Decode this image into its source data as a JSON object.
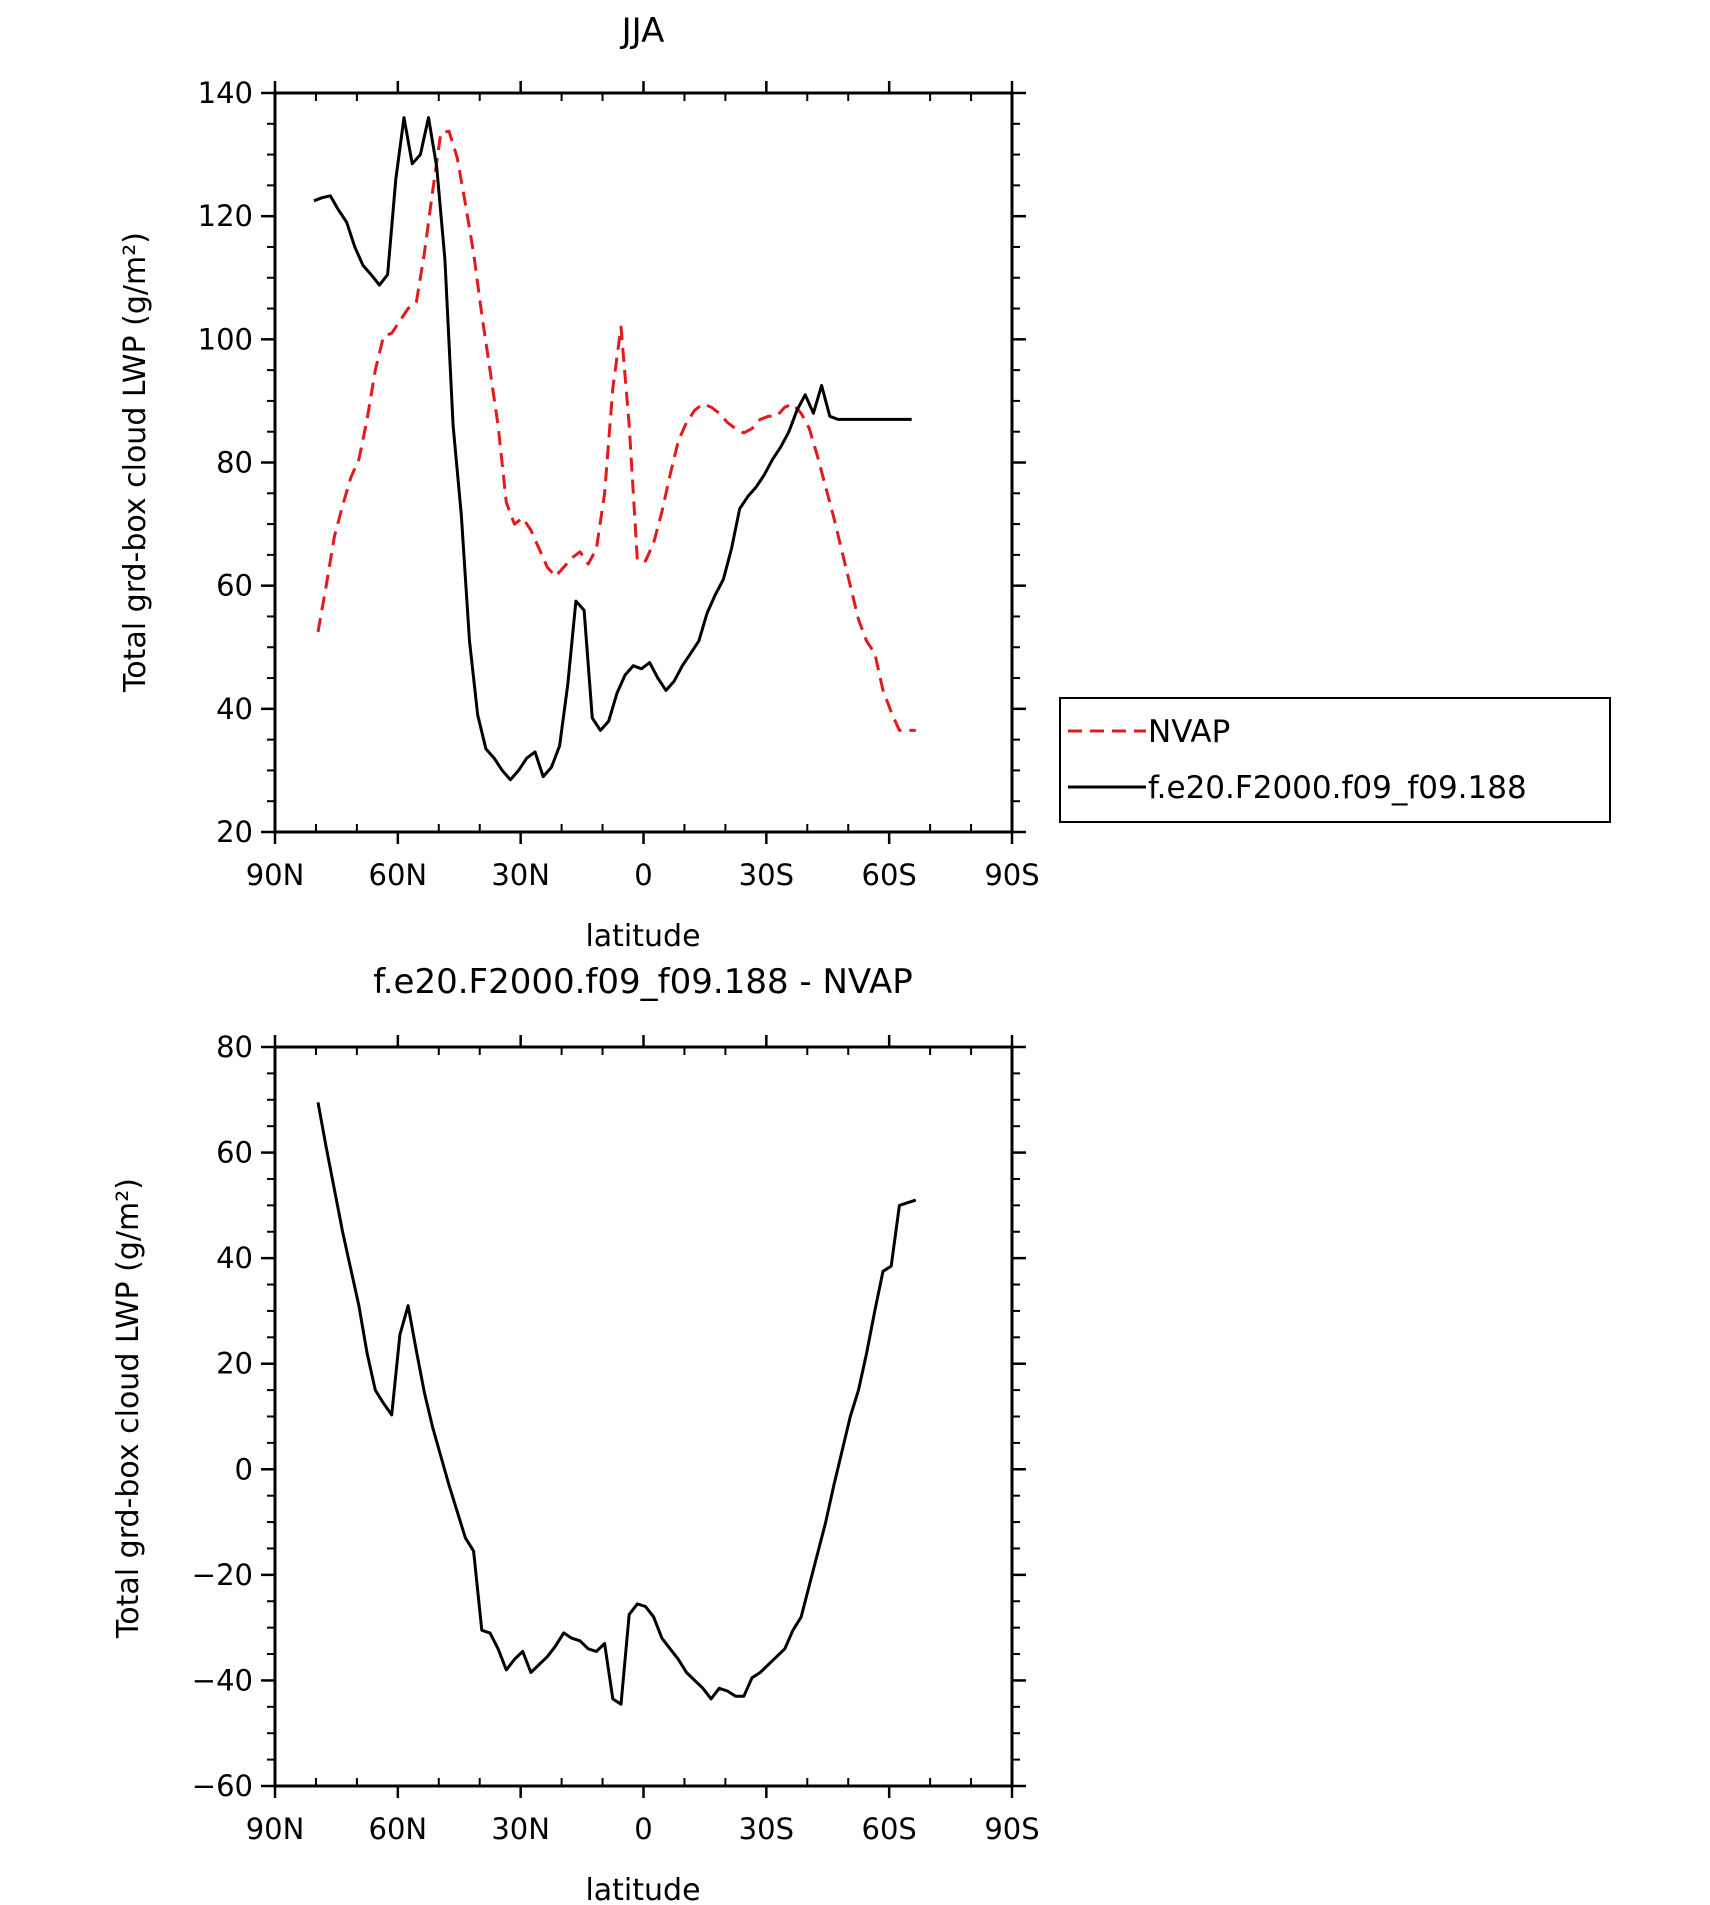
{
  "chart_data": [
    {
      "type": "line",
      "title": "JJA",
      "xlabel": "latitude",
      "ylabel": "Total grd-box cloud LWP (g/m²)",
      "ylim": [
        20,
        140
      ],
      "xlim": [
        90,
        -90
      ],
      "x_ticks": [
        {
          "value": 90,
          "label": "90N"
        },
        {
          "value": 60,
          "label": "60N"
        },
        {
          "value": 30,
          "label": "30N"
        },
        {
          "value": 0,
          "label": "0"
        },
        {
          "value": -30,
          "label": "30S"
        },
        {
          "value": -60,
          "label": "60S"
        },
        {
          "value": -90,
          "label": "90S"
        }
      ],
      "y_ticks": [
        20,
        40,
        60,
        80,
        100,
        120,
        140
      ],
      "legend": "right",
      "series": [
        {
          "name": "NVAP",
          "color": "#e31a1c",
          "dash": "dashed",
          "x": [
            79.5,
            77.5,
            75.5,
            73.5,
            71.5,
            69.5,
            67.5,
            65.5,
            63.5,
            61.5,
            59.5,
            57.5,
            55.5,
            53.5,
            51.5,
            49.5,
            47.5,
            45.5,
            43.5,
            41.5,
            39.5,
            37.5,
            35.5,
            33.5,
            31.5,
            29.5,
            27.5,
            25.5,
            23.5,
            21.5,
            19.5,
            17.5,
            15.5,
            13.5,
            11.5,
            9.5,
            7.5,
            5.5,
            3.5,
            1.5,
            -0.5,
            -2.5,
            -4.5,
            -6.5,
            -8.5,
            -10.5,
            -12.5,
            -14.5,
            -16.5,
            -18.5,
            -20.5,
            -22.5,
            -24.5,
            -26.5,
            -28.5,
            -30.5,
            -32.5,
            -34.5,
            -36.5,
            -38.5,
            -40.5,
            -42.5,
            -44.5,
            -46.5,
            -48.5,
            -50.5,
            -52.5,
            -54.5,
            -56.5,
            -58.5,
            -60.5,
            -62.5,
            -64.5,
            -66.5
          ],
          "values": [
            52.5,
            60,
            68,
            73,
            77.5,
            80.5,
            87,
            95,
            100.5,
            101,
            103,
            105,
            106,
            114,
            124,
            133.5,
            133.8,
            129.5,
            122,
            114,
            104,
            95,
            86,
            73.5,
            70,
            71,
            69,
            66,
            63,
            61.5,
            63,
            64.5,
            65.5,
            63.5,
            66,
            75,
            92,
            102,
            86,
            64,
            64,
            67,
            72,
            78,
            83.5,
            86.5,
            88.5,
            89.5,
            89,
            88,
            86.5,
            85.5,
            84.8,
            85.5,
            87,
            87.5,
            87.5,
            89,
            89.5,
            88,
            85.5,
            81,
            76,
            71,
            65.5,
            60,
            54.5,
            51,
            49,
            43,
            39.5,
            36.5,
            36.5,
            36.5
          ]
        },
        {
          "name": "f.e20.F2000.f09_f09.188",
          "color": "#000000",
          "dash": "solid",
          "x": [
            80.5,
            78.5,
            76.5,
            74.5,
            72.5,
            70.5,
            68.5,
            66.5,
            64.5,
            62.5,
            60.5,
            58.5,
            56.5,
            54.5,
            52.5,
            50.5,
            48.5,
            46.5,
            44.5,
            42.5,
            40.5,
            38.5,
            36.5,
            34.5,
            32.5,
            30.5,
            28.5,
            26.5,
            24.5,
            22.5,
            20.5,
            18.5,
            16.5,
            14.5,
            12.5,
            10.5,
            8.5,
            6.5,
            4.5,
            2.5,
            0.5,
            -1.5,
            -3.5,
            -5.5,
            -7.5,
            -9.5,
            -11.5,
            -13.5,
            -15.5,
            -17.5,
            -19.5,
            -21.5,
            -23.5,
            -25.5,
            -27.5,
            -29.5,
            -31.5,
            -33.5,
            -35.5,
            -37.5,
            -39.5,
            -41.5,
            -43.5,
            -45.5,
            -47.5,
            -49.5,
            -51.5,
            -53.5,
            -55.5,
            -57.5,
            -59.5,
            -61.5,
            -63.5,
            -65.5
          ],
          "values": [
            122.5,
            123,
            123.3,
            121,
            119,
            115,
            112,
            110.5,
            108.8,
            110.5,
            126,
            136,
            128.5,
            130,
            136,
            128,
            113,
            86,
            71.5,
            51,
            39,
            33.5,
            32,
            30,
            28.5,
            30,
            32,
            33,
            29,
            30.5,
            34,
            44,
            57.5,
            56,
            38.5,
            36.5,
            38,
            42.5,
            45.5,
            47,
            46.5,
            47.5,
            45,
            43,
            44.5,
            47,
            49,
            51,
            55.5,
            58.5,
            61,
            66,
            72.5,
            74.5,
            76,
            78,
            80.5,
            82.5,
            85,
            88.5,
            91,
            88,
            92.5,
            87.5,
            87,
            87,
            87,
            87,
            87,
            87,
            87,
            87,
            87,
            87
          ]
        }
      ]
    },
    {
      "type": "line",
      "title": "f.e20.F2000.f09_f09.188 - NVAP",
      "xlabel": "latitude",
      "ylabel": "Total grd-box cloud LWP (g/m²)",
      "ylim": [
        -60,
        80
      ],
      "xlim": [
        90,
        -90
      ],
      "x_ticks": [
        {
          "value": 90,
          "label": "90N"
        },
        {
          "value": 60,
          "label": "60N"
        },
        {
          "value": 30,
          "label": "30N"
        },
        {
          "value": 0,
          "label": "0"
        },
        {
          "value": -30,
          "label": "30S"
        },
        {
          "value": -60,
          "label": "60S"
        },
        {
          "value": -90,
          "label": "90S"
        }
      ],
      "y_ticks": [
        -60,
        -40,
        -20,
        0,
        20,
        40,
        60,
        80
      ],
      "series": [
        {
          "color": "#000000",
          "dash": "solid",
          "x": [
            79.5,
            77.5,
            75.5,
            73.5,
            71.5,
            69.5,
            67.5,
            65.5,
            63.5,
            61.5,
            59.5,
            57.5,
            55.5,
            53.5,
            51.5,
            49.5,
            47.5,
            45.5,
            43.5,
            41.5,
            39.5,
            37.5,
            35.5,
            33.5,
            31.5,
            29.5,
            27.5,
            25.5,
            23.5,
            21.5,
            19.5,
            17.5,
            15.5,
            13.5,
            11.5,
            9.5,
            7.5,
            5.5,
            3.5,
            1.5,
            -0.5,
            -2.5,
            -4.5,
            -6.5,
            -8.5,
            -10.5,
            -12.5,
            -14.5,
            -16.5,
            -18.5,
            -20.5,
            -22.5,
            -24.5,
            -26.5,
            -28.5,
            -30.5,
            -32.5,
            -34.5,
            -36.5,
            -38.5,
            -40.5,
            -42.5,
            -44.5,
            -46.5,
            -48.5,
            -50.5,
            -52.5,
            -54.5,
            -56.5,
            -58.5,
            -60.5,
            -62.5,
            -64.5,
            -66.5
          ],
          "values": [
            69.5,
            61,
            53,
            45,
            38,
            31,
            22,
            15,
            12.5,
            10.3,
            25.5,
            31,
            22.5,
            14.5,
            8,
            2.5,
            -3,
            -8,
            -13,
            -15.5,
            -30.5,
            -31,
            -34,
            -38,
            -36,
            -34.5,
            -38.5,
            -37,
            -35.5,
            -33.5,
            -31,
            -32,
            -32.5,
            -34,
            -34.5,
            -33,
            -43.5,
            -44.5,
            -27.5,
            -25.5,
            -26,
            -28,
            -32,
            -34,
            -36,
            -38.5,
            -40,
            -41.5,
            -43.5,
            -41.5,
            -42,
            -43,
            -43,
            -39.5,
            -38.5,
            -37,
            -35.5,
            -34,
            -30.5,
            -28,
            -22,
            -16,
            -10,
            -3,
            3.5,
            10,
            15,
            22,
            30,
            37.5,
            38.5,
            50,
            50.5,
            51
          ]
        }
      ]
    }
  ]
}
